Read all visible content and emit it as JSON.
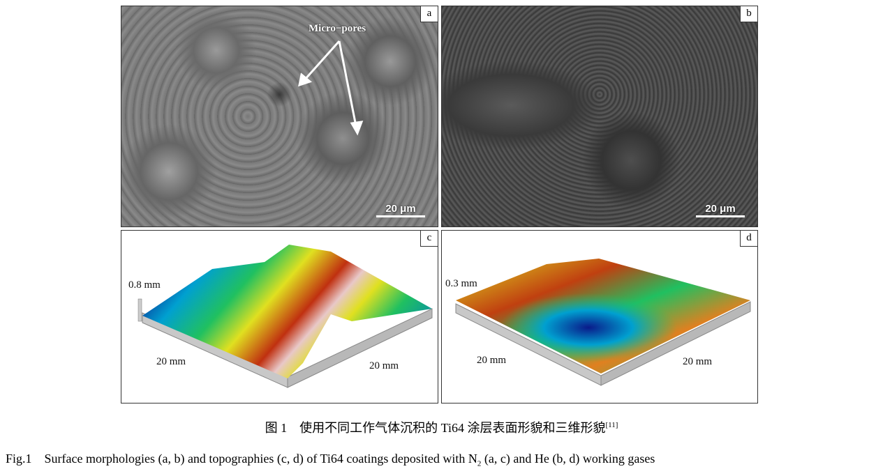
{
  "panels": {
    "a": {
      "tag": "a",
      "annotation": "Micro−pores",
      "scale_bar": "20 μm"
    },
    "b": {
      "tag": "b",
      "scale_bar": "20 μm"
    },
    "c": {
      "tag": "c",
      "z_label": "0.8 mm",
      "x_label": "20 mm",
      "y_label": "20 mm"
    },
    "d": {
      "tag": "d",
      "z_label": "0.3 mm",
      "x_label": "20 mm",
      "y_label": "20 mm"
    }
  },
  "colormap": [
    "#0a1a8a",
    "#00a0d0",
    "#20c060",
    "#e0e020",
    "#c03010",
    "#f0e0e0"
  ],
  "caption": {
    "cn": "图 1　使用不同工作气体沉积的 Ti64 涂层表面形貌和三维形貌",
    "cn_ref": "[11]",
    "en_1": "Fig.1　Surface morphologies (a, b) and topographies (c, d) of Ti64 coatings deposited with N",
    "en_sub": "2",
    "en_2": " (a, c) and He (b, d) working gases"
  }
}
